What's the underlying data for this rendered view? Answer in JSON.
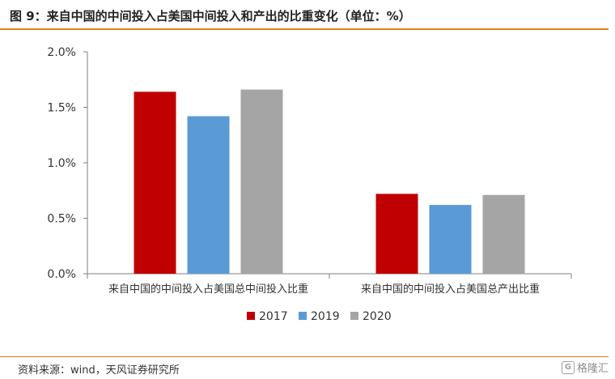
{
  "title": "图 9：来自中国的中间投入占美国中间投入和产出的比重变化（单位：%）",
  "source": "资料来源：wind，天风证券研究所",
  "watermark": "格隆汇",
  "colors": {
    "2017": "#C00000",
    "2019": "#5B9BD5",
    "2020": "#A5A5A5",
    "accent": "#E37D23"
  },
  "chart_data": {
    "type": "bar",
    "categories": [
      "来自中国的中间投入占美国总中间投入比重",
      "来自中国的中间投入占美国总产出比重"
    ],
    "series": [
      {
        "name": "2017",
        "values": [
          1.64,
          0.72
        ]
      },
      {
        "name": "2019",
        "values": [
          1.42,
          0.62
        ]
      },
      {
        "name": "2020",
        "values": [
          1.66,
          0.71
        ]
      }
    ],
    "ylim": [
      0,
      2.0
    ],
    "yticks": [
      "0.0%",
      "0.5%",
      "1.0%",
      "1.5%",
      "2.0%"
    ],
    "ytick_values": [
      0,
      0.5,
      1.0,
      1.5,
      2.0
    ],
    "legend_position": "bottom"
  }
}
